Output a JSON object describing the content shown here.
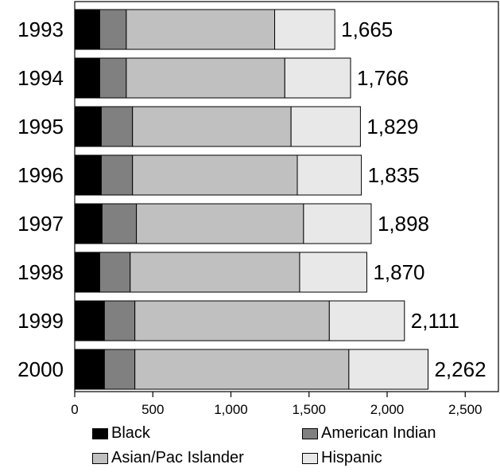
{
  "chart_data": {
    "type": "bar",
    "orientation": "horizontal",
    "stacked": true,
    "categories": [
      "1993",
      "1994",
      "1995",
      "1996",
      "1997",
      "1998",
      "1999",
      "2000"
    ],
    "series": [
      {
        "name": "Black",
        "color": "#000000",
        "values": [
          160,
          160,
          170,
          170,
          175,
          160,
          190,
          190
        ]
      },
      {
        "name": "American Indian",
        "color": "#808080",
        "values": [
          170,
          170,
          200,
          200,
          220,
          195,
          195,
          195
        ]
      },
      {
        "name": "Asian/Pac Islander",
        "color": "#c0c0c0",
        "values": [
          950,
          1015,
          1015,
          1055,
          1070,
          1085,
          1245,
          1370
        ]
      },
      {
        "name": "Hispanic",
        "color": "#e8e8e8",
        "values": [
          385,
          421,
          444,
          410,
          433,
          430,
          481,
          507
        ]
      }
    ],
    "totals": [
      "1,665",
      "1,766",
      "1,829",
      "1,835",
      "1,898",
      "1,870",
      "2,111",
      "2,262"
    ],
    "x_ticks": [
      "0",
      "500",
      "1,000",
      "1,500",
      "2,000",
      "2,500"
    ],
    "xlim": [
      0,
      2700
    ],
    "grid": false,
    "legend_position": "bottom"
  }
}
